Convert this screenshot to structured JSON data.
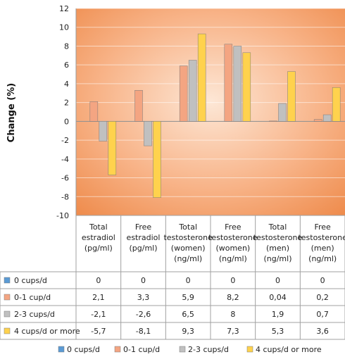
{
  "chart_data": {
    "type": "bar",
    "ylabel": "Change (%)",
    "ylim": [
      -10,
      12
    ],
    "yticks": [
      -10,
      -8,
      -6,
      -4,
      -2,
      0,
      2,
      4,
      6,
      8,
      10,
      12
    ],
    "categories": [
      [
        "Total",
        "estradiol",
        "(pg/ml)"
      ],
      [
        "Free",
        "estradiol",
        "(pg/ml)"
      ],
      [
        "Total",
        "testosterone",
        "(women)",
        "(ng/ml)"
      ],
      [
        "Free",
        "testosterone",
        "(women)",
        "(ng/ml)"
      ],
      [
        "Total",
        "testosterone",
        "(men)",
        "(ng/ml)"
      ],
      [
        "Free",
        "testosterone",
        "(men)",
        "(ng/ml)"
      ]
    ],
    "series": [
      {
        "name": "0 cups/d",
        "color": "#5b9bd5",
        "values": [
          0,
          0,
          0,
          0,
          0,
          0
        ],
        "labels": [
          "0",
          "0",
          "0",
          "0",
          "0",
          "0"
        ]
      },
      {
        "name": "0-1 cup/d",
        "color": "#f4a582",
        "values": [
          2.1,
          3.3,
          5.9,
          8.2,
          0.04,
          0.2
        ],
        "labels": [
          "2,1",
          "3,3",
          "5,9",
          "8,2",
          "0,04",
          "0,2"
        ]
      },
      {
        "name": "2-3 cups/d",
        "color": "#c0c0c0",
        "values": [
          -2.1,
          -2.6,
          6.5,
          8,
          1.9,
          0.7
        ],
        "labels": [
          "-2,1",
          "-2,6",
          "6,5",
          "8",
          "1,9",
          "0,7"
        ]
      },
      {
        "name": "4 cups/d or more",
        "color": "#ffd24d",
        "values": [
          -5.7,
          -8.1,
          9.3,
          7.3,
          5.3,
          3.6
        ],
        "labels": [
          "-5,7",
          "-8,1",
          "9,3",
          "7,3",
          "5,3",
          "3,6"
        ]
      }
    ],
    "legend_position": "bottom",
    "grid": true
  }
}
